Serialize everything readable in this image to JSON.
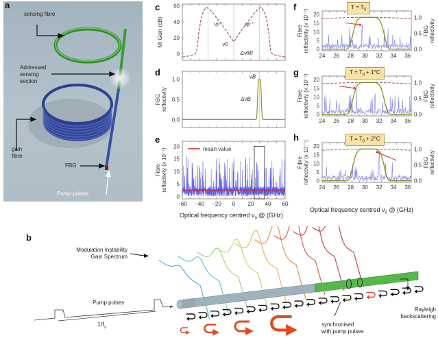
{
  "panels": {
    "a": {
      "label": "a",
      "bg_color": "#a9b9c4",
      "annotations": {
        "sensing_fibre": "sensing fibre",
        "addressed": [
          "Addressed",
          "sensing",
          "section"
        ],
        "gain_fibre": [
          "gain",
          "fibre"
        ],
        "fbg": "FBG",
        "pump_pulses": "Pump pulses"
      },
      "colors": {
        "sensing": "#3f9b3c",
        "gain": "#3a4fa0",
        "fbg": "#8a1a1a"
      }
    },
    "b": {
      "label": "b",
      "mi_label": [
        "Modulation Instability",
        "Gain Spectrum"
      ],
      "pump_label": "Pump pulses",
      "period_label": "1/f",
      "period_sub": "s",
      "rayleigh_label": [
        "Rayleigh",
        "backscattering"
      ],
      "sync_label": [
        "synchronised",
        "with pump pulses"
      ],
      "colors": {
        "grey_fibre": "#9fb3bd",
        "green_fibre": "#55b84a",
        "arrow_red": "#e0481e",
        "arrow_black": "#111111"
      }
    },
    "x_axis_label": "Optical frequency centred ν",
    "x_axis_label_sub": "0",
    "x_axis_label_tail": " @ (GHz)"
  },
  "chart_data": [
    {
      "id": "c",
      "label": "c",
      "type": "line",
      "ylabel": "MI Gain (dB)",
      "xlim": [
        -60,
        60
      ],
      "ylim": [
        -8,
        62
      ],
      "yticks": [
        0,
        20,
        40,
        60
      ],
      "series": [
        {
          "name": "MI gain",
          "color": "#9a5b5b",
          "style": "dashed",
          "x": [
            -60,
            -55,
            -50,
            -45,
            -43,
            -41,
            -38,
            -35,
            -32,
            -30,
            -25,
            -20,
            -15,
            -10,
            -5,
            0,
            5,
            10,
            15,
            20,
            25,
            30,
            32,
            35,
            38,
            41,
            43,
            45,
            50,
            55,
            60
          ],
          "y": [
            -4,
            -3,
            -2,
            0,
            4,
            25,
            45,
            54,
            58,
            57,
            52,
            45,
            38,
            31,
            23,
            15,
            23,
            31,
            38,
            45,
            52,
            57,
            58,
            54,
            45,
            25,
            4,
            0,
            -2,
            -3,
            -4
          ]
        }
      ],
      "annotations": {
        "vp_minus": "ν",
        "vp_minus_sub": "p",
        "vp_minus_sup": "-",
        "vp_plus": "ν",
        "vp_plus_sub": "p",
        "vp_plus_sup": "+",
        "v0": "ν",
        "v0_sub": "0",
        "dv": "Δν",
        "dv_sub": "MI"
      },
      "vlines": [
        -30,
        0,
        30
      ]
    },
    {
      "id": "d",
      "label": "d",
      "type": "line",
      "ylabel": [
        "FBG",
        "reflectivity"
      ],
      "xlim": [
        -60,
        60
      ],
      "ylim": [
        -0.2,
        1.2
      ],
      "yticks": [
        "0.0",
        "0.5",
        "1.0"
      ],
      "ytick_values": [
        0,
        0.5,
        1.0
      ],
      "series": [
        {
          "name": "FBG reflectivity",
          "color": "#9a9a2a",
          "center": 30,
          "width": 2.5,
          "peak": 1.0
        }
      ],
      "annotations": {
        "vB": "ν",
        "vB_sub": "B",
        "dvB": "Δν",
        "dvB_sub": "B"
      },
      "vlines": [
        30
      ]
    },
    {
      "id": "e",
      "label": "e",
      "type": "line",
      "ylabel": [
        "Fibre",
        "reflectivity (x 10⁻⁷)"
      ],
      "xlim": [
        -60,
        60
      ],
      "ylim": [
        -1,
        22
      ],
      "yticks": [
        0,
        5,
        10,
        15,
        20
      ],
      "xticks": [
        "−60",
        "−40",
        "−20",
        "0",
        "20",
        "40",
        "60"
      ],
      "xtick_values": [
        -60,
        -40,
        -20,
        0,
        20,
        40,
        60
      ],
      "legend": "mean value",
      "mean_value": 2.5,
      "box_range": [
        24,
        36
      ],
      "series": [
        {
          "name": "Fibre reflectivity",
          "color": "#2020e0",
          "note": "random speckle 0–17"
        }
      ]
    },
    {
      "id": "f",
      "label": "f",
      "type": "line",
      "temp_label": "T = T",
      "temp_sub": "0",
      "temp_tail": "",
      "ylabel_left": [
        "Fibre",
        "reflectivity (x 10⁻⁷)"
      ],
      "ylabel_right": [
        "FBG",
        "reflectivity"
      ],
      "xlim": [
        24,
        36.5
      ],
      "ylim_left": [
        -1,
        22
      ],
      "ylim_right": [
        -0.05,
        1.2
      ],
      "yticks_left": [
        0,
        5,
        10,
        15,
        20
      ],
      "yticks_right": [
        "0.0",
        "0.5",
        "1.0"
      ],
      "xticks": [
        24,
        26,
        28,
        30,
        32,
        34,
        36
      ],
      "fbg_window": [
        28.2,
        32.8
      ],
      "arrow_target": [
        29.6,
        14
      ]
    },
    {
      "id": "g",
      "label": "g",
      "type": "line",
      "temp_label": "T = T",
      "temp_sub": "0",
      "temp_tail": " + 1°C",
      "ylabel_left": [
        "Fibre",
        "reflectivity (x 10⁻⁷)"
      ],
      "ylabel_right": [
        "FBG",
        "reflectivity"
      ],
      "xlim": [
        24,
        36.5
      ],
      "ylim_left": [
        -1,
        22
      ],
      "ylim_right": [
        -0.05,
        1.2
      ],
      "yticks_left": [
        0,
        5,
        10,
        15,
        20
      ],
      "yticks_right": [
        "0.0",
        "0.5",
        "1.0"
      ],
      "xticks": [
        24,
        26,
        28,
        30,
        32,
        34,
        36
      ],
      "fbg_window": [
        28.2,
        32.8
      ],
      "arrow_target": [
        28.8,
        15
      ]
    },
    {
      "id": "h",
      "label": "h",
      "type": "line",
      "temp_label": "T = T",
      "temp_sub": "0",
      "temp_tail": " + 2°C",
      "ylabel_left": [
        "Fibre",
        "reflectivity (x 10⁻⁷)"
      ],
      "ylabel_right": [
        "FBG",
        "reflectivity"
      ],
      "xlim": [
        24,
        36.5
      ],
      "ylim_left": [
        -1,
        22
      ],
      "ylim_right": [
        -0.05,
        1.2
      ],
      "yticks_left": [
        0,
        5,
        10,
        15,
        20
      ],
      "yticks_right": [
        "0.0",
        "0.5",
        "1.0"
      ],
      "xticks": [
        24,
        26,
        28,
        30,
        32,
        34,
        36
      ],
      "fbg_window": [
        28.2,
        32.8
      ],
      "arrow_target": [
        32,
        16.5
      ]
    }
  ]
}
